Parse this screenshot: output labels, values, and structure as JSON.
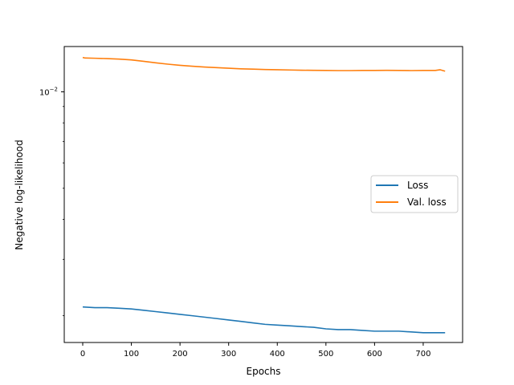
{
  "chart_data": {
    "type": "line",
    "title": "",
    "xlabel": "Epochs",
    "ylabel": "Negative log-likelihood",
    "yscale": "log",
    "xlim": [
      -38,
      781
    ],
    "ylim": [
      0.00165,
      0.01385
    ],
    "x_ticks": [
      0,
      100,
      200,
      300,
      400,
      500,
      600,
      700
    ],
    "x_tick_labels": [
      "0",
      "100",
      "200",
      "300",
      "400",
      "500",
      "600",
      "700"
    ],
    "y_major_ticks": [
      0.01
    ],
    "y_major_tick_labels": [
      {
        "base": "10",
        "exp": "−2"
      }
    ],
    "y_minor_ticks": [
      0.002,
      0.003,
      0.004,
      0.005,
      0.006,
      0.007,
      0.008,
      0.009
    ],
    "grid": false,
    "legend": {
      "position": "center-right"
    },
    "colors": {
      "loss": "#1f77b4",
      "val_loss": "#ff7f0e"
    },
    "series": [
      {
        "name": "Loss",
        "x": [
          0,
          25,
          50,
          75,
          100,
          125,
          150,
          175,
          200,
          225,
          250,
          275,
          300,
          325,
          350,
          375,
          400,
          425,
          450,
          475,
          500,
          525,
          550,
          575,
          600,
          625,
          650,
          675,
          700,
          725,
          745
        ],
        "y": [
          0.00213,
          0.00212,
          0.00212,
          0.00211,
          0.0021,
          0.00208,
          0.00206,
          0.00204,
          0.00202,
          0.002,
          0.00198,
          0.00196,
          0.00194,
          0.00192,
          0.0019,
          0.00188,
          0.00187,
          0.00186,
          0.00185,
          0.00184,
          0.00182,
          0.00181,
          0.00181,
          0.0018,
          0.00179,
          0.00179,
          0.00179,
          0.00178,
          0.00177,
          0.00177,
          0.00177
        ]
      },
      {
        "name": "Val. loss",
        "x": [
          0,
          5,
          25,
          50,
          75,
          100,
          125,
          150,
          175,
          200,
          225,
          250,
          275,
          300,
          325,
          350,
          375,
          400,
          425,
          450,
          475,
          500,
          525,
          550,
          575,
          600,
          625,
          650,
          675,
          700,
          725,
          735,
          745
        ],
        "y": [
          0.0128,
          0.01275,
          0.01273,
          0.0127,
          0.01265,
          0.01258,
          0.01245,
          0.01232,
          0.0122,
          0.0121,
          0.01202,
          0.01195,
          0.0119,
          0.01185,
          0.0118,
          0.01177,
          0.01174,
          0.01172,
          0.0117,
          0.01168,
          0.01167,
          0.01166,
          0.01165,
          0.01165,
          0.01166,
          0.01166,
          0.01167,
          0.01166,
          0.01165,
          0.01166,
          0.01166,
          0.01172,
          0.0116
        ]
      }
    ]
  }
}
